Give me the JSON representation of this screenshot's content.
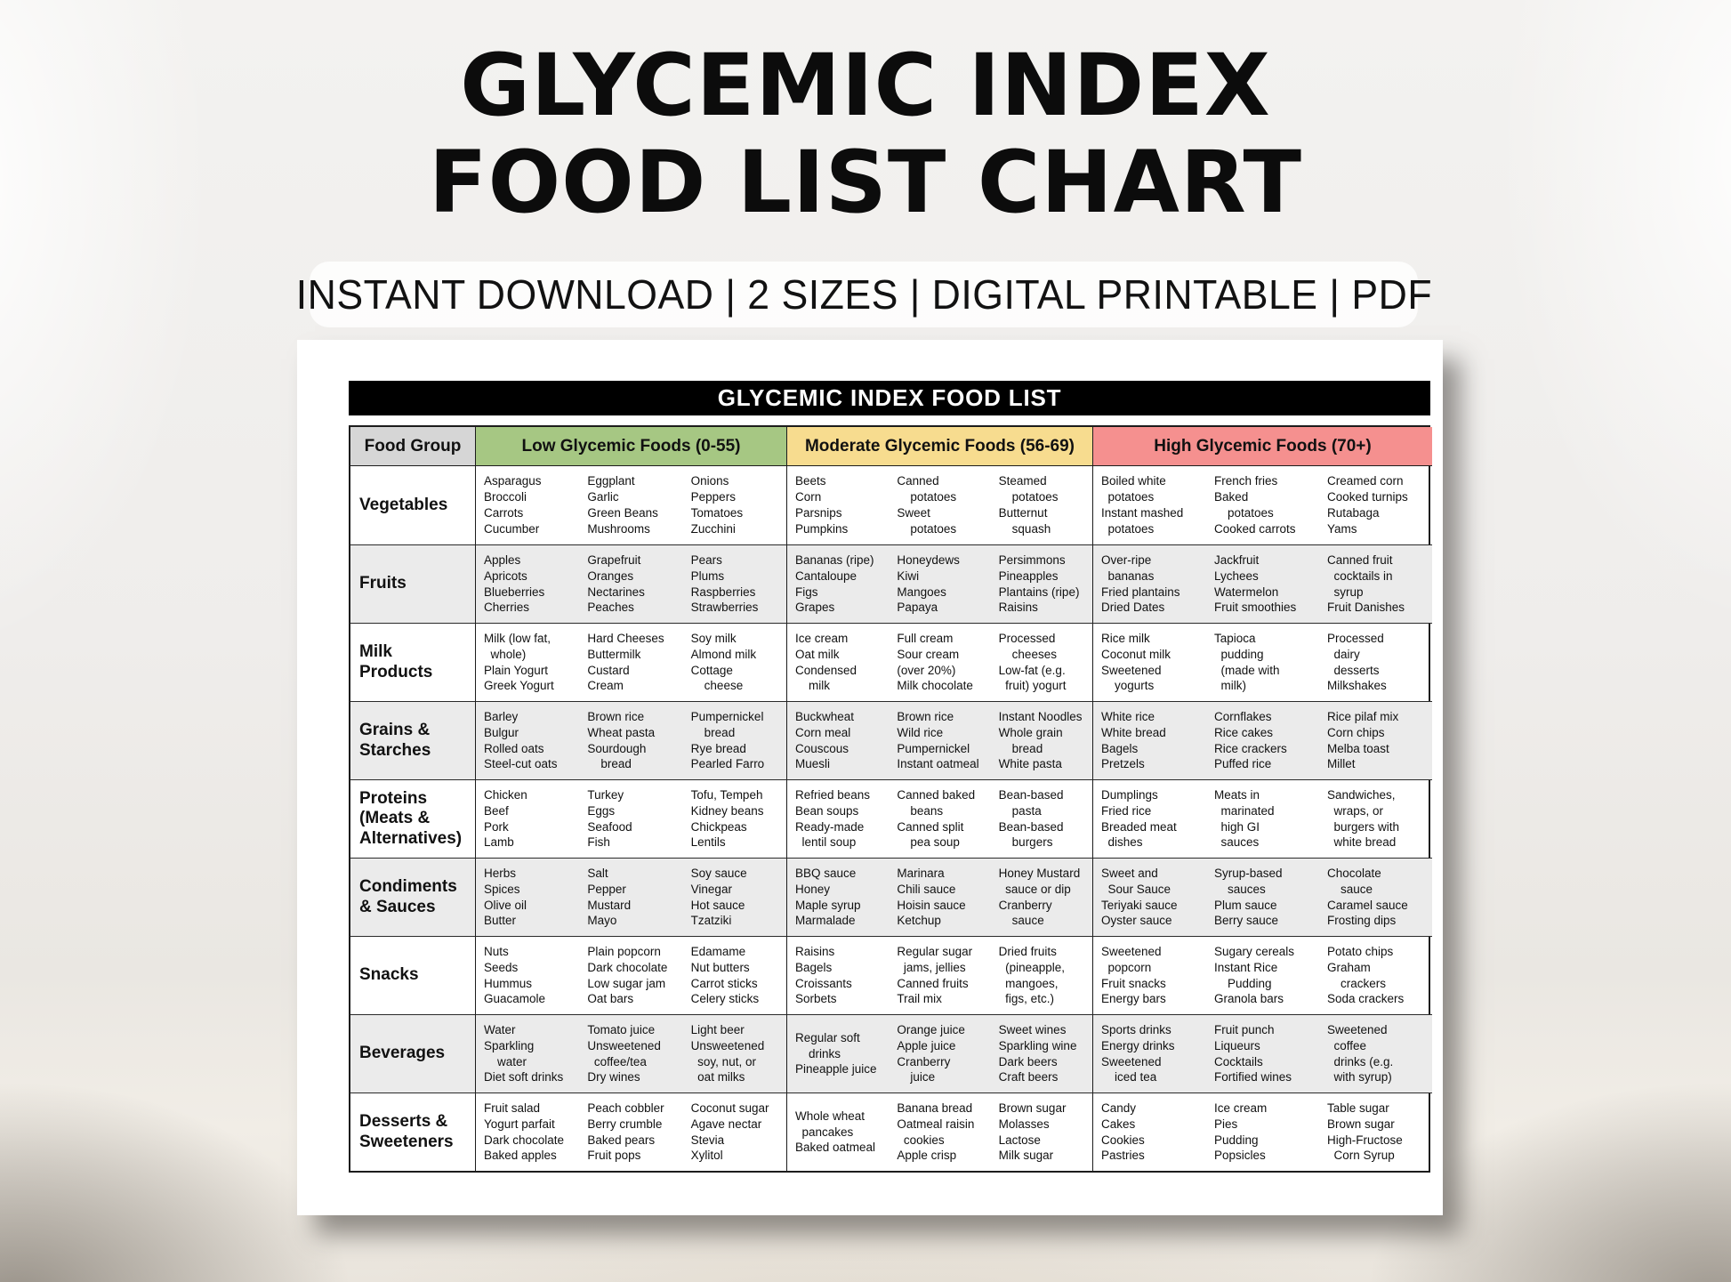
{
  "header": {
    "title_lines": [
      "GLYCEMIC INDEX",
      "FOOD LIST CHART"
    ],
    "subtitle": "INSTANT DOWNLOAD | 2 SIZES | DIGITAL PRINTABLE | PDF"
  },
  "table": {
    "title": "GLYCEMIC INDEX FOOD LIST",
    "colors": {
      "group": "#d6d6d6",
      "low": "#a6c783",
      "moderate": "#f7dc8f",
      "high": "#f5908f",
      "row_alt": "#ebebeb",
      "bar_bg": "#000000",
      "bar_text": "#ffffff"
    },
    "columns": [
      {
        "id": "group",
        "label": "Food Group"
      },
      {
        "id": "low",
        "label": "Low Glycemic Foods (0-55)"
      },
      {
        "id": "moderate",
        "label": "Moderate Glycemic Foods (56-69)"
      },
      {
        "id": "high",
        "label": "High Glycemic Foods (70+)"
      }
    ],
    "rows": [
      {
        "group": "Vegetables",
        "low": [
          "Asparagus\nBroccoli\nCarrots\nCucumber",
          "Eggplant\nGarlic\nGreen Beans\nMushrooms",
          "Onions\nPeppers\nTomatoes\nZucchini"
        ],
        "moderate": [
          "Beets\nCorn\nParsnips\nPumpkins",
          "Canned\n    potatoes\nSweet\n    potatoes",
          "Steamed\n    potatoes\nButternut\n    squash"
        ],
        "high": [
          "Boiled white\n  potatoes\nInstant mashed\n  potatoes",
          "French fries\nBaked\n    potatoes\nCooked carrots",
          "Creamed corn\nCooked turnips\nRutabaga\nYams"
        ]
      },
      {
        "group": "Fruits",
        "low": [
          "Apples\nApricots\nBlueberries\nCherries",
          "Grapefruit\nOranges\nNectarines\nPeaches",
          "Pears\nPlums\nRaspberries\nStrawberries"
        ],
        "moderate": [
          "Bananas (ripe)\nCantaloupe\nFigs\nGrapes",
          "Honeydews\nKiwi\nMangoes\nPapaya",
          "Persimmons\nPineapples\nPlantains (ripe)\nRaisins"
        ],
        "high": [
          "Over-ripe\n  bananas\nFried plantains\nDried Dates",
          "Jackfruit\nLychees\nWatermelon\nFruit smoothies",
          "Canned fruit\n  cocktails in\n  syrup\nFruit Danishes"
        ]
      },
      {
        "group": "Milk\nProducts",
        "low": [
          "Milk (low fat,\n  whole)\nPlain Yogurt\nGreek Yogurt",
          "Hard Cheeses\nButtermilk\nCustard\nCream",
          "Soy milk\nAlmond milk\nCottage\n    cheese"
        ],
        "moderate": [
          "Ice cream\nOat milk\nCondensed\n    milk",
          "Full cream\nSour cream\n(over 20%)\nMilk chocolate",
          "Processed\n    cheeses\nLow-fat (e.g.\n  fruit) yogurt"
        ],
        "high": [
          "Rice milk\nCoconut milk\nSweetened\n    yogurts",
          "Tapioca\n  pudding\n  (made with\n  milk)",
          "Processed\n  dairy\n  desserts\nMilkshakes"
        ]
      },
      {
        "group": "Grains &\nStarches",
        "low": [
          "Barley\nBulgur\nRolled oats\nSteel-cut oats",
          "Brown rice\nWheat pasta\nSourdough\n    bread",
          "Pumpernickel\n    bread\nRye bread\nPearled Farro"
        ],
        "moderate": [
          "Buckwheat\nCorn meal\nCouscous\nMuesli",
          "Brown rice\nWild rice\nPumpernickel\nInstant oatmeal",
          "Instant Noodles\nWhole grain\n    bread\nWhite pasta"
        ],
        "high": [
          "White rice\nWhite bread\nBagels\nPretzels",
          "Cornflakes\nRice cakes\nRice crackers\nPuffed rice",
          "Rice pilaf mix\nCorn chips\nMelba toast\nMillet"
        ]
      },
      {
        "group": "Proteins\n(Meats &\nAlternatives)",
        "low": [
          "Chicken\nBeef\nPork\nLamb",
          "Turkey\nEggs\nSeafood\nFish",
          "Tofu, Tempeh\nKidney beans\nChickpeas\nLentils"
        ],
        "moderate": [
          "Refried beans\nBean soups\nReady-made\n  lentil soup",
          "Canned baked\n    beans\nCanned split\n    pea soup",
          "Bean-based\n    pasta\nBean-based\n    burgers"
        ],
        "high": [
          "Dumplings\nFried rice\nBreaded meat\n  dishes",
          "Meats in\n  marinated\n  high GI\n  sauces",
          "Sandwiches,\n  wraps, or\n  burgers with\n  white bread"
        ]
      },
      {
        "group": "Condiments\n& Sauces",
        "low": [
          "Herbs\nSpices\nOlive oil\nButter",
          "Salt\nPepper\nMustard\nMayo",
          "Soy sauce\nVinegar\nHot sauce\nTzatziki"
        ],
        "moderate": [
          "BBQ sauce\nHoney\nMaple syrup\nMarmalade",
          "Marinara\nChili sauce\nHoisin sauce\nKetchup",
          "Honey Mustard\n  sauce or dip\nCranberry\n    sauce"
        ],
        "high": [
          "Sweet and\n  Sour Sauce\nTeriyaki sauce\nOyster sauce",
          "Syrup-based\n    sauces\nPlum sauce\nBerry sauce",
          "Chocolate\n    sauce\nCaramel sauce\nFrosting dips"
        ]
      },
      {
        "group": "Snacks",
        "low": [
          "Nuts\nSeeds\nHummus\nGuacamole",
          "Plain popcorn\nDark chocolate\nLow sugar jam\nOat bars",
          "Edamame\nNut butters\nCarrot sticks\nCelery sticks"
        ],
        "moderate": [
          "Raisins\nBagels\nCroissants\nSorbets",
          "Regular sugar\n  jams, jellies\nCanned fruits\nTrail mix",
          "Dried fruits\n  (pineapple,\n  mangoes,\n  figs, etc.)"
        ],
        "high": [
          "Sweetened\n  popcorn\nFruit snacks\nEnergy bars",
          "Sugary cereals\nInstant Rice\n    Pudding\nGranola bars",
          "Potato chips\nGraham\n    crackers\nSoda crackers"
        ]
      },
      {
        "group": "Beverages",
        "low": [
          "Water\nSparkling\n    water\nDiet soft drinks",
          "Tomato juice\nUnsweetened\n  coffee/tea\nDry wines",
          "Light beer\nUnsweetened\n  soy, nut, or\n  oat milks"
        ],
        "moderate": [
          "Regular soft\n    drinks\nPineapple juice",
          "Orange juice\nApple juice\nCranberry\n    juice",
          "Sweet wines\nSparkling wine\nDark beers\nCraft beers"
        ],
        "high": [
          "Sports drinks\nEnergy drinks\nSweetened\n    iced tea",
          "Fruit punch\nLiqueurs\nCocktails\nFortified wines",
          "Sweetened\n  coffee\n  drinks (e.g.\n  with syrup)"
        ]
      },
      {
        "group": "Desserts &\nSweeteners",
        "low": [
          "Fruit salad\nYogurt parfait\nDark chocolate\nBaked apples",
          "Peach cobbler\nBerry crumble\nBaked pears\nFruit pops",
          "Coconut sugar\nAgave nectar\nStevia\nXylitol"
        ],
        "moderate": [
          "Whole wheat\n  pancakes\nBaked oatmeal",
          "Banana bread\nOatmeal raisin\n  cookies\nApple crisp",
          "Brown sugar\nMolasses\nLactose\nMilk sugar"
        ],
        "high": [
          "Candy\nCakes\nCookies\nPastries",
          "Ice cream\nPies\nPudding\nPopsicles",
          "Table sugar\nBrown sugar\nHigh-Fructose\n  Corn Syrup"
        ]
      }
    ]
  }
}
